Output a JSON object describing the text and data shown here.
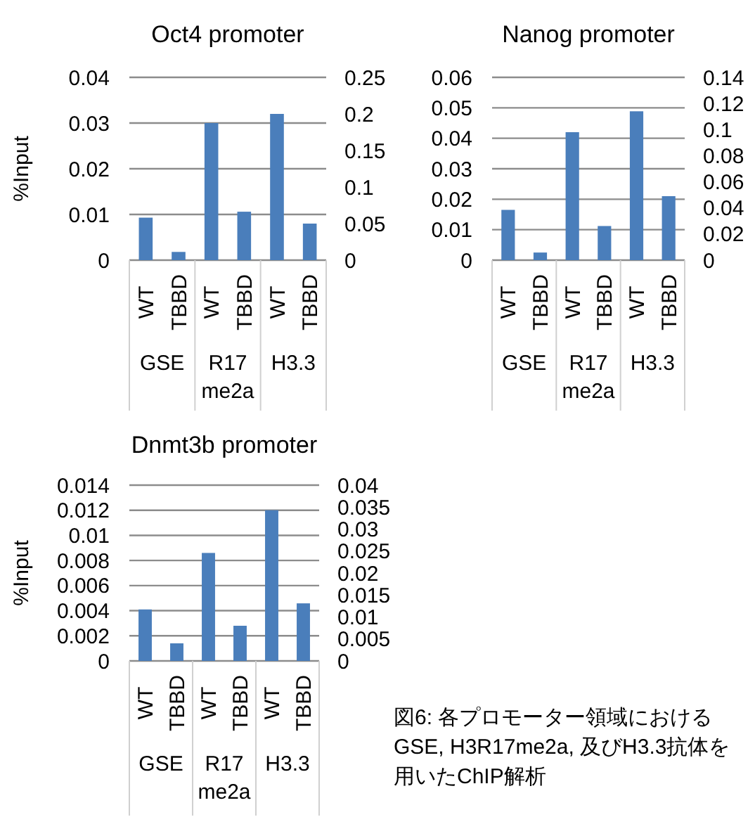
{
  "chart_data": [
    {
      "type": "bar",
      "title": "Oct4 promoter",
      "ylabel": "%Input",
      "categories": [
        "WT",
        "TBBD",
        "WT",
        "TBBD",
        "WT",
        "TBBD"
      ],
      "annotations": [
        "GSE",
        "R17 me2a",
        "H3.3"
      ],
      "series": [
        {
          "color": "#4a7ebb",
          "values": [
            0.0093,
            0.0018,
            0.03,
            0.0106,
            null,
            null
          ]
        },
        {
          "color": "#4a7ebb",
          "axis": "y2",
          "values": [
            null,
            null,
            null,
            null,
            0.2,
            0.05
          ]
        }
      ],
      "ylim": [
        0,
        0.04
      ],
      "yticks": [
        0,
        0.01,
        0.02,
        0.03,
        0.04
      ],
      "y2lim": [
        0,
        0.25
      ],
      "y2ticks": [
        0,
        0.05,
        0.1,
        0.15,
        0.2,
        0.25
      ],
      "grid": "y"
    },
    {
      "type": "bar",
      "title": "Nanog promoter",
      "categories": [
        "WT",
        "TBBD",
        "WT",
        "TBBD",
        "WT",
        "TBBD"
      ],
      "annotations": [
        "GSE",
        "R17 me2a",
        "H3.3"
      ],
      "series": [
        {
          "color": "#4a7ebb",
          "values": [
            0.0165,
            0.0025,
            0.042,
            0.0112,
            null,
            null
          ]
        },
        {
          "color": "#4a7ebb",
          "axis": "y2",
          "values": [
            null,
            null,
            null,
            null,
            0.114,
            0.049
          ]
        }
      ],
      "ylim": [
        0,
        0.06
      ],
      "yticks": [
        0,
        0.01,
        0.02,
        0.03,
        0.04,
        0.05,
        0.06
      ],
      "y2lim": [
        0,
        0.14
      ],
      "y2ticks": [
        0,
        0.02,
        0.04,
        0.06,
        0.08,
        0.1,
        0.12,
        0.14
      ],
      "grid": "y"
    },
    {
      "type": "bar",
      "title": "Dnmt3b promoter",
      "ylabel": "%Input",
      "categories": [
        "WT",
        "TBBD",
        "WT",
        "TBBD",
        "WT",
        "TBBD"
      ],
      "annotations": [
        "GSE",
        "R17 me2a",
        "H3.3"
      ],
      "series": [
        {
          "color": "#4a7ebb",
          "values": [
            0.0041,
            0.0014,
            0.0086,
            0.0028,
            null,
            null
          ]
        },
        {
          "color": "#4a7ebb",
          "axis": "y2",
          "values": [
            null,
            null,
            null,
            null,
            0.0343,
            0.0131
          ]
        }
      ],
      "ylim": [
        0,
        0.014
      ],
      "yticks": [
        0,
        0.002,
        0.004,
        0.006,
        0.008,
        0.01,
        0.012,
        0.014
      ],
      "y2lim": [
        0,
        0.04
      ],
      "y2ticks": [
        0,
        0.005,
        0.01,
        0.015,
        0.02,
        0.025,
        0.03,
        0.035,
        0.04
      ],
      "grid": "y"
    },
    {
      "type": "other",
      "annotations": [
        "図6: 各プロモーター領域における",
        "GSE, H3R17me2a, 及びH3.3抗体を",
        "用いたChIP解析"
      ]
    }
  ]
}
